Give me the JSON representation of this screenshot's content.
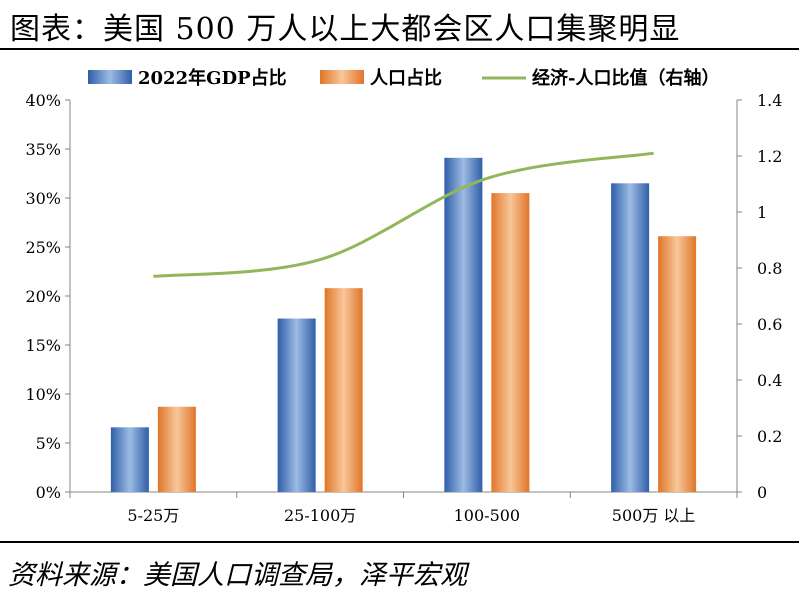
{
  "title": "图表：美国 500 万人以上大都会区人口集聚明显",
  "source": "资料来源：美国人口调查局，泽平宏观",
  "colors": {
    "gdp_bar": "#3e6fb5",
    "pop_bar": "#e8853b",
    "ratio_line": "#92b75a",
    "axis": "#868686"
  },
  "chart_data": {
    "type": "bar",
    "categories": [
      "5-25万",
      "25-100万",
      "100-500",
      "500万 以上"
    ],
    "series": [
      {
        "name": "2022年GDP占比",
        "axis": "left",
        "kind": "bar",
        "values": [
          0.066,
          0.177,
          0.341,
          0.315
        ]
      },
      {
        "name": "人口占比",
        "axis": "left",
        "kind": "bar",
        "values": [
          0.087,
          0.208,
          0.305,
          0.261
        ]
      },
      {
        "name": "经济-人口比值（右轴）",
        "axis": "right",
        "kind": "line",
        "values": [
          0.77,
          0.83,
          1.12,
          1.21
        ]
      }
    ],
    "ylim": [
      0,
      0.4
    ],
    "yticks": [
      "0%",
      "5%",
      "10%",
      "15%",
      "20%",
      "25%",
      "30%",
      "35%",
      "40%"
    ],
    "y2lim": [
      0,
      1.4
    ],
    "y2ticks": [
      "0",
      "0.2",
      "0.4",
      "0.6",
      "0.8",
      "1",
      "1.2",
      "1.4"
    ],
    "legend_position": "top"
  }
}
